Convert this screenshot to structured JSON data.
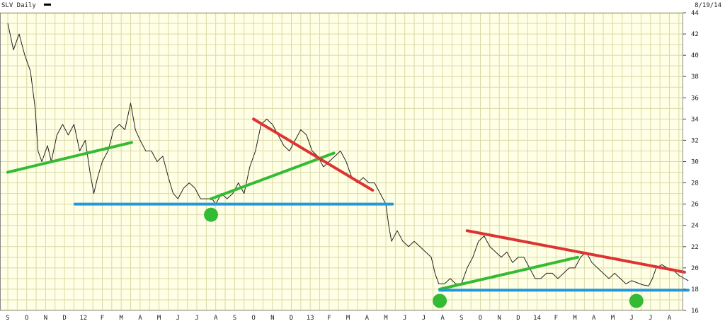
{
  "header": {
    "symbol_label": "SLV Daily",
    "date_label": "8/19/14",
    "legend_swatch_color": "#000000"
  },
  "chart_data": {
    "type": "line",
    "title": "SLV Daily",
    "xlabel": "",
    "ylabel": "",
    "ylim": [
      16,
      44
    ],
    "grid": true,
    "background_color": "#FFFFE6",
    "grid_color": "#D9D9A6",
    "x_tick_labels": [
      "S",
      "O",
      "N",
      "D",
      "12",
      "F",
      "M",
      "A",
      "M",
      "J",
      "J",
      "A",
      "S",
      "O",
      "N",
      "D",
      "13",
      "F",
      "M",
      "A",
      "M",
      "J",
      "J",
      "A",
      "S",
      "O",
      "N",
      "D",
      "14",
      "F",
      "M",
      "A",
      "M",
      "J",
      "J",
      "A"
    ],
    "y_ticks": [
      16,
      18,
      20,
      22,
      24,
      26,
      28,
      30,
      32,
      34,
      36,
      38,
      40,
      42,
      44
    ],
    "series": [
      {
        "color": "#222222",
        "points": [
          [
            0,
            43.0
          ],
          [
            0.3,
            40.5
          ],
          [
            0.6,
            42.0
          ],
          [
            0.9,
            40.0
          ],
          [
            1.2,
            38.5
          ],
          [
            1.45,
            35.0
          ],
          [
            1.6,
            31.0
          ],
          [
            1.8,
            30.0
          ],
          [
            2.1,
            31.5
          ],
          [
            2.3,
            30.0
          ],
          [
            2.6,
            32.5
          ],
          [
            2.9,
            33.5
          ],
          [
            3.2,
            32.5
          ],
          [
            3.5,
            33.5
          ],
          [
            3.8,
            31.0
          ],
          [
            4.1,
            32.0
          ],
          [
            4.35,
            29.0
          ],
          [
            4.55,
            27.0
          ],
          [
            4.75,
            28.5
          ],
          [
            5.0,
            30.0
          ],
          [
            5.3,
            31.0
          ],
          [
            5.6,
            33.0
          ],
          [
            5.9,
            33.5
          ],
          [
            6.2,
            33.0
          ],
          [
            6.5,
            35.5
          ],
          [
            6.75,
            33.0
          ],
          [
            7.0,
            32.0
          ],
          [
            7.3,
            31.0
          ],
          [
            7.6,
            31.0
          ],
          [
            7.9,
            30.0
          ],
          [
            8.2,
            30.5
          ],
          [
            8.5,
            28.5
          ],
          [
            8.75,
            27.0
          ],
          [
            9.0,
            26.5
          ],
          [
            9.3,
            27.5
          ],
          [
            9.6,
            28.0
          ],
          [
            9.9,
            27.5
          ],
          [
            10.2,
            26.5
          ],
          [
            10.5,
            26.5
          ],
          [
            10.8,
            26.5
          ],
          [
            11.0,
            26.0
          ],
          [
            11.3,
            27.0
          ],
          [
            11.6,
            26.5
          ],
          [
            11.9,
            27.0
          ],
          [
            12.2,
            28.0
          ],
          [
            12.5,
            27.0
          ],
          [
            12.8,
            29.5
          ],
          [
            13.1,
            31.0
          ],
          [
            13.4,
            33.5
          ],
          [
            13.7,
            34.0
          ],
          [
            14.0,
            33.5
          ],
          [
            14.3,
            32.5
          ],
          [
            14.6,
            31.5
          ],
          [
            14.9,
            31.0
          ],
          [
            15.2,
            32.0
          ],
          [
            15.5,
            33.0
          ],
          [
            15.8,
            32.5
          ],
          [
            16.1,
            31.0
          ],
          [
            16.4,
            30.5
          ],
          [
            16.7,
            29.5
          ],
          [
            17.0,
            30.0
          ],
          [
            17.3,
            30.5
          ],
          [
            17.6,
            31.0
          ],
          [
            17.9,
            30.0
          ],
          [
            18.2,
            28.5
          ],
          [
            18.5,
            28.0
          ],
          [
            18.8,
            28.5
          ],
          [
            19.1,
            28.0
          ],
          [
            19.4,
            28.0
          ],
          [
            19.7,
            27.0
          ],
          [
            20.0,
            26.0
          ],
          [
            20.15,
            24.0
          ],
          [
            20.3,
            22.5
          ],
          [
            20.6,
            23.5
          ],
          [
            20.9,
            22.5
          ],
          [
            21.2,
            22.0
          ],
          [
            21.5,
            22.5
          ],
          [
            21.8,
            22.0
          ],
          [
            22.1,
            21.5
          ],
          [
            22.4,
            21.0
          ],
          [
            22.6,
            19.5
          ],
          [
            22.8,
            18.5
          ],
          [
            23.1,
            18.5
          ],
          [
            23.4,
            19.0
          ],
          [
            23.7,
            18.5
          ],
          [
            24.0,
            18.5
          ],
          [
            24.3,
            20.0
          ],
          [
            24.6,
            21.0
          ],
          [
            24.9,
            22.5
          ],
          [
            25.2,
            23.0
          ],
          [
            25.5,
            22.0
          ],
          [
            25.8,
            21.5
          ],
          [
            26.1,
            21.0
          ],
          [
            26.4,
            21.5
          ],
          [
            26.7,
            20.5
          ],
          [
            27.0,
            21.0
          ],
          [
            27.3,
            21.0
          ],
          [
            27.6,
            20.0
          ],
          [
            27.9,
            19.0
          ],
          [
            28.2,
            19.0
          ],
          [
            28.5,
            19.5
          ],
          [
            28.8,
            19.5
          ],
          [
            29.1,
            19.0
          ],
          [
            29.4,
            19.5
          ],
          [
            29.7,
            20.0
          ],
          [
            30.0,
            20.0
          ],
          [
            30.3,
            21.0
          ],
          [
            30.6,
            21.5
          ],
          [
            30.9,
            20.5
          ],
          [
            31.2,
            20.0
          ],
          [
            31.5,
            19.5
          ],
          [
            31.8,
            19.0
          ],
          [
            32.1,
            19.5
          ],
          [
            32.4,
            19.0
          ],
          [
            32.7,
            18.5
          ],
          [
            33.0,
            18.8
          ],
          [
            33.3,
            18.6
          ],
          [
            33.6,
            18.4
          ],
          [
            33.9,
            18.3
          ],
          [
            34.1,
            19.0
          ],
          [
            34.3,
            20.0
          ],
          [
            34.6,
            20.3
          ],
          [
            34.9,
            20.0
          ],
          [
            35.2,
            19.8
          ],
          [
            35.5,
            19.3
          ],
          [
            35.8,
            19.0
          ],
          [
            36.0,
            18.8
          ]
        ]
      }
    ],
    "annotations": {
      "lines": [
        {
          "color": "#33BB33",
          "from": [
            0,
            29.0
          ],
          "to": [
            6.55,
            31.8
          ]
        },
        {
          "color": "#33BB33",
          "from": [
            10.75,
            26.5
          ],
          "to": [
            17.25,
            30.8
          ]
        },
        {
          "color": "#33BB33",
          "from": [
            22.85,
            18.0
          ],
          "to": [
            30.15,
            21.0
          ]
        },
        {
          "color": "#DD3333",
          "from": [
            13.0,
            34.0
          ],
          "to": [
            19.3,
            27.3
          ]
        },
        {
          "color": "#DD3333",
          "from": [
            24.3,
            23.5
          ],
          "to": [
            35.8,
            19.6
          ]
        },
        {
          "color": "#2299DD",
          "from": [
            3.55,
            26.0
          ],
          "to": [
            20.35,
            26.0
          ]
        },
        {
          "color": "#2299DD",
          "from": [
            22.85,
            17.9
          ],
          "to": [
            36.0,
            17.9
          ]
        }
      ],
      "markers": [
        {
          "color": "#33BB33",
          "at": [
            10.75,
            25.0
          ]
        },
        {
          "color": "#33BB33",
          "at": [
            22.85,
            16.9
          ]
        },
        {
          "color": "#33BB33",
          "at": [
            33.25,
            16.9
          ]
        }
      ]
    }
  }
}
